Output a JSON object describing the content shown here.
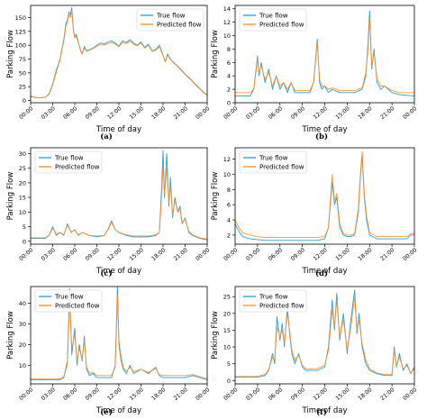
{
  "colors": {
    "true_flow": "#1f9bd7",
    "predicted_flow": "#ff8c1a",
    "axis": "#000000"
  },
  "chart_data": [
    {
      "panel": "(a)",
      "type": "line",
      "xlabel": "Time of day",
      "ylabel": "Parking Flow",
      "xticks": [
        "00:00",
        "03:00",
        "06:00",
        "09:00",
        "12:00",
        "15:00",
        "18:00",
        "21:00",
        "00:00"
      ],
      "yticks": [
        0,
        25,
        50,
        75,
        100,
        125,
        150
      ],
      "xlim": [
        0,
        24
      ],
      "ylim": [
        -4,
        172
      ],
      "legend": "top-right",
      "grid": false,
      "x": [
        0,
        0.5,
        1,
        1.5,
        2,
        2.5,
        3,
        3.5,
        4,
        4.2,
        4.5,
        4.8,
        5,
        5.2,
        5.4,
        5.6,
        5.8,
        6,
        6.2,
        6.4,
        6.6,
        6.8,
        7,
        7.3,
        7.6,
        8,
        8.5,
        9,
        9.5,
        10,
        10.5,
        11,
        11.5,
        12,
        12.5,
        13,
        13.5,
        14,
        14.5,
        15,
        15.5,
        16,
        16.5,
        17,
        17.5,
        18,
        18.3,
        18.6,
        19,
        19.5,
        20,
        20.5,
        21,
        21.5,
        22,
        22.5,
        23,
        23.5,
        24
      ],
      "series": [
        {
          "name": "True flow",
          "values": [
            8,
            6,
            5,
            5,
            6,
            12,
            30,
            55,
            75,
            90,
            110,
            140,
            145,
            160,
            155,
            168,
            130,
            115,
            120,
            110,
            100,
            90,
            85,
            98,
            90,
            92,
            95,
            100,
            104,
            102,
            106,
            108,
            104,
            98,
            108,
            105,
            110,
            104,
            100,
            106,
            96,
            102,
            90,
            92,
            100,
            82,
            70,
            84,
            75,
            68,
            62,
            55,
            48,
            42,
            35,
            28,
            22,
            15,
            10
          ]
        },
        {
          "name": "Predicted flow",
          "values": [
            7,
            6,
            5,
            5,
            6,
            11,
            28,
            52,
            73,
            88,
            107,
            135,
            142,
            155,
            150,
            163,
            128,
            113,
            117,
            108,
            99,
            89,
            84,
            95,
            89,
            91,
            94,
            98,
            101,
            100,
            103,
            105,
            102,
            97,
            105,
            103,
            107,
            102,
            99,
            104,
            95,
            100,
            89,
            91,
            97,
            81,
            70,
            82,
            74,
            67,
            61,
            54,
            47,
            41,
            34,
            27,
            21,
            14,
            10
          ]
        }
      ]
    },
    {
      "panel": "(b)",
      "type": "line",
      "xlabel": "Time of day",
      "ylabel": "Parking Flow",
      "xticks": [
        "00:00",
        "03:00",
        "06:00",
        "09:00",
        "12:00",
        "15:00",
        "18:00",
        "21:00",
        "00:00"
      ],
      "yticks": [
        0,
        2,
        4,
        6,
        8,
        10,
        12,
        14
      ],
      "xlim": [
        0,
        24
      ],
      "ylim": [
        0,
        14.5
      ],
      "legend": "top-left",
      "grid": false,
      "x": [
        0,
        1,
        2,
        2.5,
        3,
        3.2,
        3.5,
        4,
        4.5,
        5,
        5.5,
        6,
        6.5,
        7,
        7.5,
        8,
        9,
        10,
        10.5,
        11,
        11.3,
        11.6,
        12,
        12.5,
        13,
        14,
        15,
        16,
        17,
        17.5,
        17.8,
        18,
        18.3,
        18.6,
        19,
        19.5,
        20,
        21,
        22,
        23,
        24
      ],
      "series": [
        {
          "name": "True flow",
          "values": [
            1,
            1,
            1,
            2,
            7,
            4,
            6,
            3,
            5,
            2,
            4,
            2,
            3,
            1.5,
            3,
            1.5,
            1.5,
            1.5,
            3,
            9.5,
            3,
            2,
            2.5,
            1.5,
            2,
            1.5,
            1.5,
            1.5,
            2,
            4,
            9,
            13.7,
            5,
            8,
            3,
            2,
            2.5,
            1.5,
            1.2,
            1.1,
            1
          ]
        },
        {
          "name": "Predicted flow",
          "values": [
            1.5,
            1.5,
            1.5,
            2,
            6.5,
            4.5,
            5.5,
            3.5,
            4.5,
            2.5,
            4,
            2.5,
            3,
            2,
            3,
            1.8,
            1.8,
            1.8,
            3,
            9,
            3.5,
            2.5,
            2.5,
            2,
            2.2,
            1.8,
            1.8,
            1.8,
            2.2,
            4.5,
            8,
            12.5,
            5.5,
            7.5,
            3.5,
            2.5,
            2.5,
            1.8,
            1.5,
            1.5,
            1.5
          ]
        }
      ]
    },
    {
      "panel": "(c)",
      "type": "line",
      "xlabel": "Time of day",
      "ylabel": "Parking Flow",
      "xticks": [
        "00:00",
        "03:00",
        "06:00",
        "09:00",
        "12:00",
        "15:00",
        "18:00",
        "21:00",
        "00:00"
      ],
      "yticks": [
        0,
        5,
        10,
        15,
        20,
        25,
        30
      ],
      "xlim": [
        0,
        24
      ],
      "ylim": [
        -1,
        32
      ],
      "legend": "top-left",
      "grid": false,
      "x": [
        0,
        1,
        2,
        2.5,
        3,
        3.5,
        4,
        4.5,
        5,
        5.5,
        6,
        6.5,
        7,
        8,
        9,
        10,
        10.5,
        11,
        11.5,
        12,
        13,
        14,
        15,
        16,
        17,
        17.5,
        17.8,
        18,
        18.2,
        18.5,
        18.8,
        19,
        19.3,
        19.6,
        20,
        20.3,
        20.6,
        21,
        21.5,
        22,
        23,
        24
      ],
      "series": [
        {
          "name": "True flow",
          "values": [
            1,
            1,
            1,
            2,
            5,
            2,
            3,
            2,
            6,
            3,
            4,
            2,
            3,
            2,
            1.5,
            2,
            4,
            7,
            4,
            3,
            2,
            1.5,
            1.5,
            1.5,
            2,
            3,
            18,
            31,
            15,
            30,
            12,
            22,
            8,
            15,
            10,
            12,
            6,
            8,
            3,
            2,
            1,
            0.5
          ]
        },
        {
          "name": "Predicted flow",
          "values": [
            1.2,
            1.2,
            1.2,
            2,
            4.5,
            2.5,
            3,
            2.2,
            5.5,
            3.2,
            3.8,
            2.2,
            3,
            2,
            1.8,
            2,
            3.8,
            6.5,
            4,
            3,
            2.2,
            1.8,
            1.8,
            1.8,
            2.2,
            3,
            15,
            26,
            16,
            25,
            13,
            19,
            9,
            14,
            10,
            11,
            6.5,
            7.5,
            3.5,
            2.2,
            1.2,
            0.8
          ]
        }
      ]
    },
    {
      "panel": "(d)",
      "type": "line",
      "xlabel": "Time of day",
      "ylabel": "Parking Flow",
      "xticks": [
        "00:00",
        "03:00",
        "06:00",
        "09:00",
        "12:00",
        "15:00",
        "18:00",
        "21:00",
        "00:00"
      ],
      "yticks": [
        2,
        4,
        6,
        8,
        10,
        12
      ],
      "xlim": [
        0,
        24
      ],
      "ylim": [
        0.8,
        13.5
      ],
      "legend": "top-left",
      "grid": false,
      "x": [
        0,
        0.5,
        1,
        2,
        3,
        4,
        5,
        6,
        7,
        8,
        9,
        10,
        11,
        12,
        12.5,
        13,
        13.3,
        13.6,
        14,
        14.5,
        15,
        15.5,
        16,
        16.5,
        16.8,
        17,
        17.3,
        17.6,
        18,
        19,
        20,
        21,
        22,
        23,
        23.5,
        24
      ],
      "series": [
        {
          "name": "True flow",
          "values": [
            3.5,
            2.5,
            1.8,
            1.5,
            1.4,
            1.3,
            1.3,
            1.3,
            1.3,
            1.3,
            1.3,
            1.3,
            1.3,
            1.5,
            3,
            9,
            6,
            7,
            3,
            2,
            1.8,
            1.8,
            2,
            5,
            10,
            12.5,
            7,
            4,
            2,
            1.5,
            1.5,
            1.5,
            1.5,
            1.5,
            2,
            2
          ]
        },
        {
          "name": "Predicted flow",
          "values": [
            4,
            3,
            2.3,
            2,
            1.8,
            1.7,
            1.7,
            1.7,
            1.7,
            1.7,
            1.7,
            1.7,
            1.7,
            1.8,
            3,
            10,
            6.5,
            7.5,
            3.5,
            2.2,
            2,
            2,
            2.2,
            5.5,
            10.5,
            13,
            7.5,
            4.5,
            2.3,
            1.8,
            1.8,
            1.8,
            1.8,
            1.8,
            2.2,
            2.2
          ]
        }
      ]
    },
    {
      "panel": "(e)",
      "type": "line",
      "xlabel": "Time of day",
      "ylabel": "Parking Flow",
      "xticks": [
        "00:00",
        "03:00",
        "06:00",
        "09:00",
        "12:00",
        "15:00",
        "18:00",
        "21:00",
        "00:00"
      ],
      "yticks": [
        10,
        20,
        30,
        40
      ],
      "xlim": [
        0,
        24
      ],
      "ylim": [
        1,
        48
      ],
      "legend": "top-left",
      "grid": false,
      "x": [
        0,
        1,
        2,
        3,
        4,
        4.5,
        5,
        5.3,
        5.6,
        6,
        6.3,
        6.6,
        7,
        7.3,
        7.6,
        8,
        8.5,
        9,
        10,
        11,
        11.5,
        11.8,
        12,
        12.3,
        12.6,
        13,
        13.5,
        14,
        15,
        16,
        17,
        17.5,
        18,
        19,
        20,
        21,
        22,
        23,
        24
      ],
      "series": [
        {
          "name": "True flow",
          "values": [
            3,
            3,
            3,
            3,
            3,
            4,
            12,
            47,
            15,
            28,
            10,
            20,
            12,
            24,
            8,
            5,
            6,
            4,
            4,
            4,
            10,
            48,
            20,
            12,
            8,
            6,
            10,
            6,
            8,
            6,
            9,
            5,
            4,
            4,
            4,
            4,
            5,
            4,
            3
          ]
        },
        {
          "name": "Predicted flow",
          "values": [
            3.5,
            3.5,
            3.5,
            3.5,
            3.5,
            4.5,
            10,
            42,
            18,
            25,
            12,
            18,
            13,
            22,
            9,
            6,
            6.5,
            5,
            5,
            5,
            9,
            44,
            22,
            14,
            9,
            7,
            9,
            7,
            8,
            6.5,
            8.5,
            5.5,
            5,
            5,
            5,
            5,
            5.5,
            4.5,
            3.5
          ]
        }
      ]
    },
    {
      "panel": "(f)",
      "type": "line",
      "xlabel": "Time of day",
      "ylabel": "Parking Flow",
      "xticks": [
        "00:00",
        "03:00",
        "06:00",
        "09:00",
        "12:00",
        "15:00",
        "18:00",
        "21:00",
        "00:00"
      ],
      "yticks": [
        0,
        5,
        10,
        15,
        20,
        25
      ],
      "xlim": [
        0,
        24
      ],
      "ylim": [
        -1,
        28
      ],
      "legend": "top-left",
      "grid": false,
      "x": [
        0,
        1,
        2,
        3,
        4,
        4.5,
        5,
        5.3,
        5.6,
        6,
        6.3,
        6.6,
        7,
        7.3,
        7.6,
        8,
        8.5,
        9,
        9.5,
        10,
        11,
        12,
        12.5,
        13,
        13.3,
        13.6,
        14,
        14.5,
        15,
        15.5,
        16,
        16.3,
        16.6,
        17,
        17.5,
        18,
        19,
        20,
        21,
        21.3,
        21.6,
        22,
        22.5,
        23,
        23.5,
        24
      ],
      "series": [
        {
          "name": "True flow",
          "values": [
            1,
            1,
            1,
            1,
            1.5,
            3,
            8,
            5,
            19,
            12,
            17,
            10,
            22,
            14,
            8,
            5,
            8,
            4,
            3,
            3,
            3,
            4,
            10,
            24,
            15,
            26,
            12,
            20,
            8,
            18,
            27,
            14,
            20,
            10,
            5,
            3,
            2,
            1.5,
            1.5,
            10,
            4,
            8,
            3,
            5,
            2,
            4
          ]
        },
        {
          "name": "Predicted flow",
          "values": [
            1.2,
            1.2,
            1.2,
            1.2,
            1.8,
            3.2,
            7,
            6,
            16,
            13,
            15,
            11,
            20,
            15,
            9,
            6,
            7.5,
            4.5,
            3.5,
            3.5,
            3.5,
            4.5,
            9,
            21,
            16,
            24,
            13,
            18,
            9,
            16,
            25,
            15,
            18,
            11,
            6,
            3.5,
            2.2,
            1.8,
            1.8,
            9,
            4.5,
            7,
            3.5,
            4.5,
            2.2,
            3.5
          ]
        }
      ]
    }
  ]
}
